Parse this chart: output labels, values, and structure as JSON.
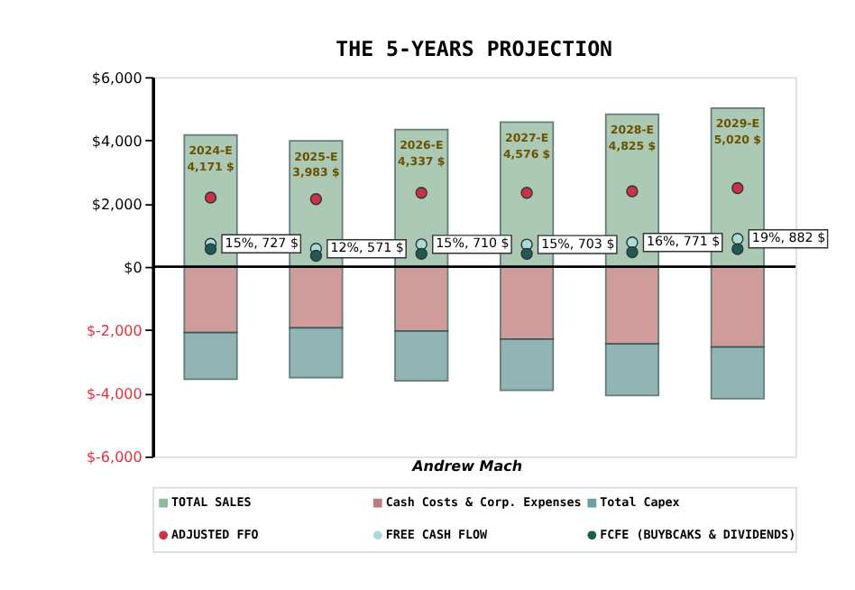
{
  "chart_data": {
    "type": "bar",
    "title": "THE 5-YEARS PROJECTION",
    "categories": [
      "2024-E",
      "2025-E",
      "2026-E",
      "2027-E",
      "2028-E",
      "2029-E"
    ],
    "stacked": true,
    "series": [
      {
        "name": "TOTAL SALES",
        "type": "bar",
        "color": "#8fb89c",
        "values": [
          4171,
          3983,
          4337,
          4576,
          4825,
          5020
        ],
        "value_labels": [
          "4,171 $",
          "3,983 $",
          "4,337 $",
          "4,576 $",
          "4,825 $",
          "5,020 $"
        ]
      },
      {
        "name": "Cash Costs & Corp. Expenses",
        "type": "bar",
        "color": "#c07a7a",
        "values": [
          -2080,
          -1930,
          -2030,
          -2290,
          -2440,
          -2540
        ]
      },
      {
        "name": "Total Capex",
        "type": "bar",
        "color": "#6f9c9c",
        "values": [
          -1480,
          -1580,
          -1580,
          -1620,
          -1630,
          -1630
        ]
      },
      {
        "name": "ADJUSTED FFO",
        "type": "scatter",
        "color": "#c8334a",
        "values": [
          2190,
          2140,
          2340,
          2340,
          2390,
          2490
        ]
      },
      {
        "name": "FREE CASH FLOW",
        "type": "scatter",
        "color": "#a8dcd8",
        "values": [
          727,
          571,
          710,
          703,
          771,
          882
        ],
        "value_labels": [
          "15%, 727 $",
          "12%, 571 $",
          "15%, 710 $",
          "15%, 703 $",
          "16%, 771 $",
          "19%, 882 $"
        ]
      },
      {
        "name": "FCFE (BUYBCAKS & DIVIDENDS)",
        "type": "scatter",
        "color": "#1f5a55",
        "values": [
          560,
          350,
          410,
          410,
          460,
          560
        ]
      }
    ],
    "ylim": [
      -6000,
      6000
    ],
    "yticks": [
      {
        "value": 6000,
        "label": "$6,000"
      },
      {
        "value": 4000,
        "label": "$4,000"
      },
      {
        "value": 2000,
        "label": "$2,000"
      },
      {
        "value": 0,
        "label": "$0"
      },
      {
        "value": -2000,
        "label": "$-2,000"
      },
      {
        "value": -4000,
        "label": "$-4,000"
      },
      {
        "value": -6000,
        "label": "$-6,000"
      }
    ],
    "ref_lines": [
      {
        "axis": "y",
        "value": 0,
        "color": "#000000"
      }
    ],
    "annotations": [
      "Andrew Mach"
    ],
    "tick_labels": "y",
    "grid": false,
    "legend": "bottom",
    "marker": "circle"
  }
}
